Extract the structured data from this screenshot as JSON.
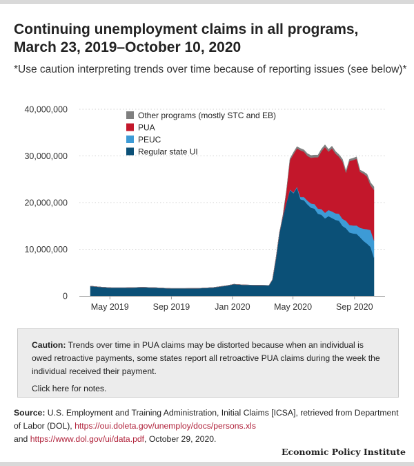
{
  "title_line1": "Continuing unemployment claims in all programs,",
  "title_line2": "March 23, 2019–October 10, 2020",
  "subtitle": "*Use caution interpreting trends over time because of reporting issues (see below)*",
  "caution": {
    "label": "Caution:",
    "text": " Trends over time in PUA claims may be distorted because when an individual is owed retroactive payments, some states report all retroactive PUA claims during the week the individual received their payment.",
    "notes_link": "Click here for notes."
  },
  "source": {
    "label": "Source:",
    "text1": " U.S. Employment and Training Administration, Initial Claims [ICSA], retrieved from Department of Labor (DOL), ",
    "link1": "https://oui.doleta.gov/unemploy/docs/persons.xls",
    "text2": "and ",
    "link2": "https://www.dol.gov/ui/data.pdf",
    "text3": ", October 29, 2020."
  },
  "brand": "Economic Policy Institute",
  "chart_data": {
    "type": "area",
    "stacked": true,
    "title": "Continuing unemployment claims in all programs, March 23, 2019–October 10, 2020",
    "x_dates": [
      "2019-03-23",
      "2019-04-13",
      "2019-05-04",
      "2019-06-01",
      "2019-07-06",
      "2019-08-03",
      "2019-08-31",
      "2019-09-28",
      "2019-10-26",
      "2019-11-23",
      "2019-12-21",
      "2020-01-04",
      "2020-01-25",
      "2020-02-22",
      "2020-03-14",
      "2020-03-21",
      "2020-03-28",
      "2020-04-04",
      "2020-04-11",
      "2020-04-18",
      "2020-04-25",
      "2020-05-02",
      "2020-05-09",
      "2020-05-16",
      "2020-05-23",
      "2020-05-30",
      "2020-06-06",
      "2020-06-13",
      "2020-06-20",
      "2020-06-27",
      "2020-07-04",
      "2020-07-11",
      "2020-07-18",
      "2020-07-25",
      "2020-08-01",
      "2020-08-08",
      "2020-08-15",
      "2020-08-22",
      "2020-08-29",
      "2020-09-05",
      "2020-09-12",
      "2020-09-19",
      "2020-09-26",
      "2020-10-03",
      "2020-10-10"
    ],
    "series": [
      {
        "name": "Regular state UI",
        "color": "#0b5077",
        "values": [
          2100000,
          1900000,
          1750000,
          1750000,
          1850000,
          1750000,
          1600000,
          1600000,
          1650000,
          1800000,
          2200000,
          2500000,
          2350000,
          2300000,
          2250000,
          3500000,
          8000000,
          13500000,
          17000000,
          20000000,
          22700000,
          22000000,
          23200000,
          20700000,
          20500000,
          19600000,
          18900000,
          18700000,
          17600000,
          17400000,
          16600000,
          17100000,
          16700000,
          16300000,
          16100000,
          15000000,
          14500000,
          13600000,
          13400000,
          13300000,
          12600000,
          11800000,
          11200000,
          10500000,
          8200000
        ]
      },
      {
        "name": "PEUC",
        "color": "#3d9bd6",
        "values": [
          0,
          0,
          0,
          0,
          0,
          0,
          0,
          0,
          0,
          0,
          0,
          0,
          0,
          0,
          0,
          0,
          0,
          0,
          0,
          50000,
          100000,
          150000,
          200000,
          500000,
          700000,
          800000,
          900000,
          1000000,
          1100000,
          1200000,
          1200000,
          1300000,
          1400000,
          1400000,
          1500000,
          1500000,
          1600000,
          1600000,
          1700000,
          1800000,
          2000000,
          2600000,
          3100000,
          3600000,
          3700000
        ]
      },
      {
        "name": "PUA",
        "color": "#c3172b",
        "values": [
          0,
          0,
          0,
          0,
          0,
          0,
          0,
          0,
          0,
          0,
          0,
          0,
          0,
          0,
          0,
          0,
          0,
          0,
          300000,
          2500000,
          6300000,
          8200000,
          8200000,
          10000000,
          9700000,
          9600000,
          9800000,
          10000000,
          11000000,
          12400000,
          14100000,
          12500000,
          13500000,
          12800000,
          12200000,
          12300000,
          10300000,
          13700000,
          14000000,
          14300000,
          12000000,
          11800000,
          11300000,
          9600000,
          10800000
        ]
      },
      {
        "name": "Other programs (mostly STC and EB)",
        "color": "#7f7f7f",
        "values": [
          0,
          0,
          0,
          0,
          0,
          0,
          0,
          0,
          0,
          0,
          0,
          0,
          0,
          0,
          0,
          0,
          0,
          0,
          0,
          100000,
          300000,
          400000,
          400000,
          400000,
          400000,
          500000,
          500000,
          500000,
          500000,
          500000,
          500000,
          500000,
          500000,
          500000,
          500000,
          500000,
          400000,
          400000,
          400000,
          400000,
          400000,
          400000,
          500000,
          600000,
          700000
        ]
      }
    ],
    "legend_order": [
      "Other programs (mostly STC and EB)",
      "PUA",
      "PEUC",
      "Regular state UI"
    ],
    "legend_position": "top-left",
    "ylim": [
      0,
      40000000
    ],
    "y_ticks": [
      "0",
      "10,000,000",
      "20,000,000",
      "30,000,000",
      "40,000,000"
    ],
    "y_tick_values": [
      0,
      10000000,
      20000000,
      30000000,
      40000000
    ],
    "x_ticks": [
      "May 2019",
      "Sep 2019",
      "Jan 2020",
      "May 2020",
      "Sep 2020"
    ],
    "x_tick_dates": [
      "2019-05-01",
      "2019-09-01",
      "2020-01-01",
      "2020-05-01",
      "2020-09-01"
    ],
    "grid": true
  }
}
